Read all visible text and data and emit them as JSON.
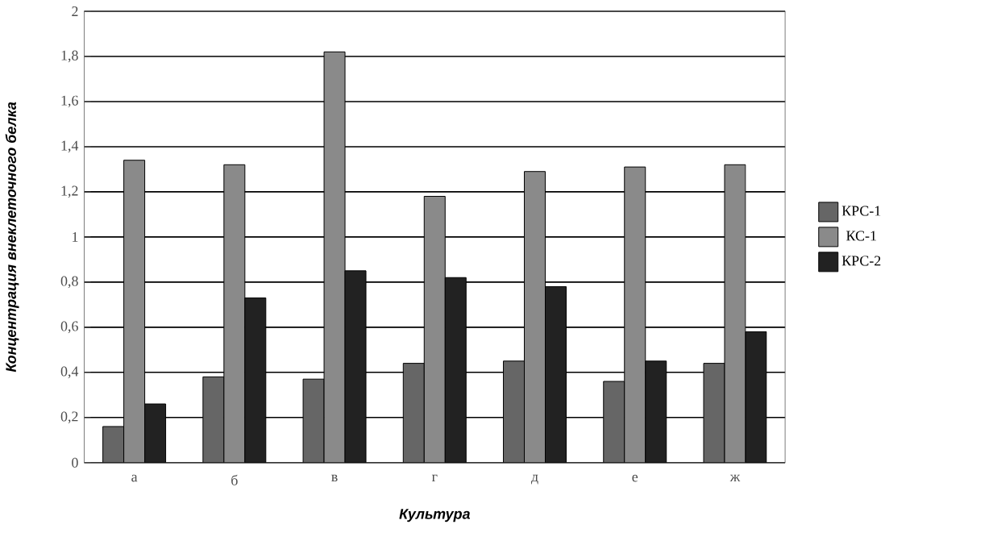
{
  "chart_data": {
    "type": "bar",
    "xlabel": "Культура",
    "ylabel": "Концентрация внеклеточного белка",
    "categories": [
      "а",
      "б",
      "в",
      "г",
      "д",
      "е",
      "ж"
    ],
    "series": [
      {
        "name": "КРС-1",
        "color": "#666666",
        "values": [
          0.16,
          0.38,
          0.37,
          0.44,
          0.45,
          0.36,
          0.44
        ]
      },
      {
        "name": "КС-1",
        "color": "#8a8a8a",
        "values": [
          1.34,
          1.32,
          1.82,
          1.18,
          1.29,
          1.31,
          1.32
        ]
      },
      {
        "name": "КРС-2",
        "color": "#222222",
        "values": [
          0.26,
          0.73,
          0.85,
          0.82,
          0.78,
          0.45,
          0.58
        ]
      }
    ],
    "ylim": [
      0,
      2
    ],
    "yticks": [
      {
        "value": 0,
        "label": "0"
      },
      {
        "value": 0.2,
        "label": "0,2"
      },
      {
        "value": 0.4,
        "label": "0,4"
      },
      {
        "value": 0.6,
        "label": "0,6"
      },
      {
        "value": 0.8,
        "label": "0,8"
      },
      {
        "value": 1,
        "label": "1"
      },
      {
        "value": 1.2,
        "label": "1,2"
      },
      {
        "value": 1.4,
        "label": "1,4"
      },
      {
        "value": 1.6,
        "label": "1,6"
      },
      {
        "value": 1.8,
        "label": "1,8"
      },
      {
        "value": 2,
        "label": "2"
      }
    ],
    "grid": "y",
    "legend": "right"
  }
}
